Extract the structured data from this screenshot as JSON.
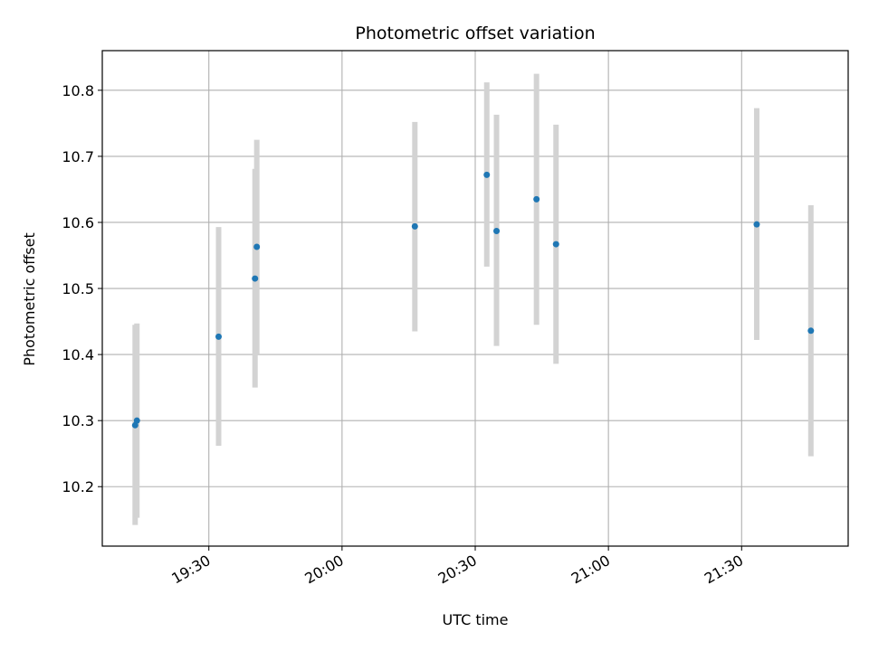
{
  "chart_data": {
    "type": "scatter",
    "title": "Photometric offset variation",
    "xlabel": "UTC time",
    "ylabel": "Photometric offset",
    "x_axis_type": "time",
    "xlim": [
      "19:06",
      "21:54"
    ],
    "ylim": [
      10.11,
      10.86
    ],
    "grid": true,
    "x_ticks": [
      "19:30",
      "20:00",
      "20:30",
      "21:00",
      "21:30"
    ],
    "y_ticks": [
      "10.2",
      "10.3",
      "10.4",
      "10.5",
      "10.6",
      "10.7",
      "10.8"
    ],
    "marker_color": "#1f77b4",
    "errorbar_color": "#d3d3d3",
    "series": [
      {
        "points": [
          {
            "time": "19:13:24",
            "value": 10.293,
            "low": 10.142,
            "high": 10.445
          },
          {
            "time": "19:13:48",
            "value": 10.3,
            "low": 10.153,
            "high": 10.447
          },
          {
            "time": "19:32:12",
            "value": 10.427,
            "low": 10.262,
            "high": 10.593
          },
          {
            "time": "19:40:24",
            "value": 10.515,
            "low": 10.35,
            "high": 10.681
          },
          {
            "time": "19:40:48",
            "value": 10.563,
            "low": 10.4,
            "high": 10.725
          },
          {
            "time": "20:16:24",
            "value": 10.594,
            "low": 10.435,
            "high": 10.752
          },
          {
            "time": "20:32:36",
            "value": 10.672,
            "low": 10.533,
            "high": 10.812
          },
          {
            "time": "20:34:48",
            "value": 10.587,
            "low": 10.413,
            "high": 10.763
          },
          {
            "time": "20:43:48",
            "value": 10.635,
            "low": 10.445,
            "high": 10.825
          },
          {
            "time": "20:48:12",
            "value": 10.567,
            "low": 10.386,
            "high": 10.748
          },
          {
            "time": "21:33:24",
            "value": 10.597,
            "low": 10.422,
            "high": 10.773
          },
          {
            "time": "21:45:36",
            "value": 10.436,
            "low": 10.246,
            "high": 10.626
          }
        ]
      }
    ]
  }
}
